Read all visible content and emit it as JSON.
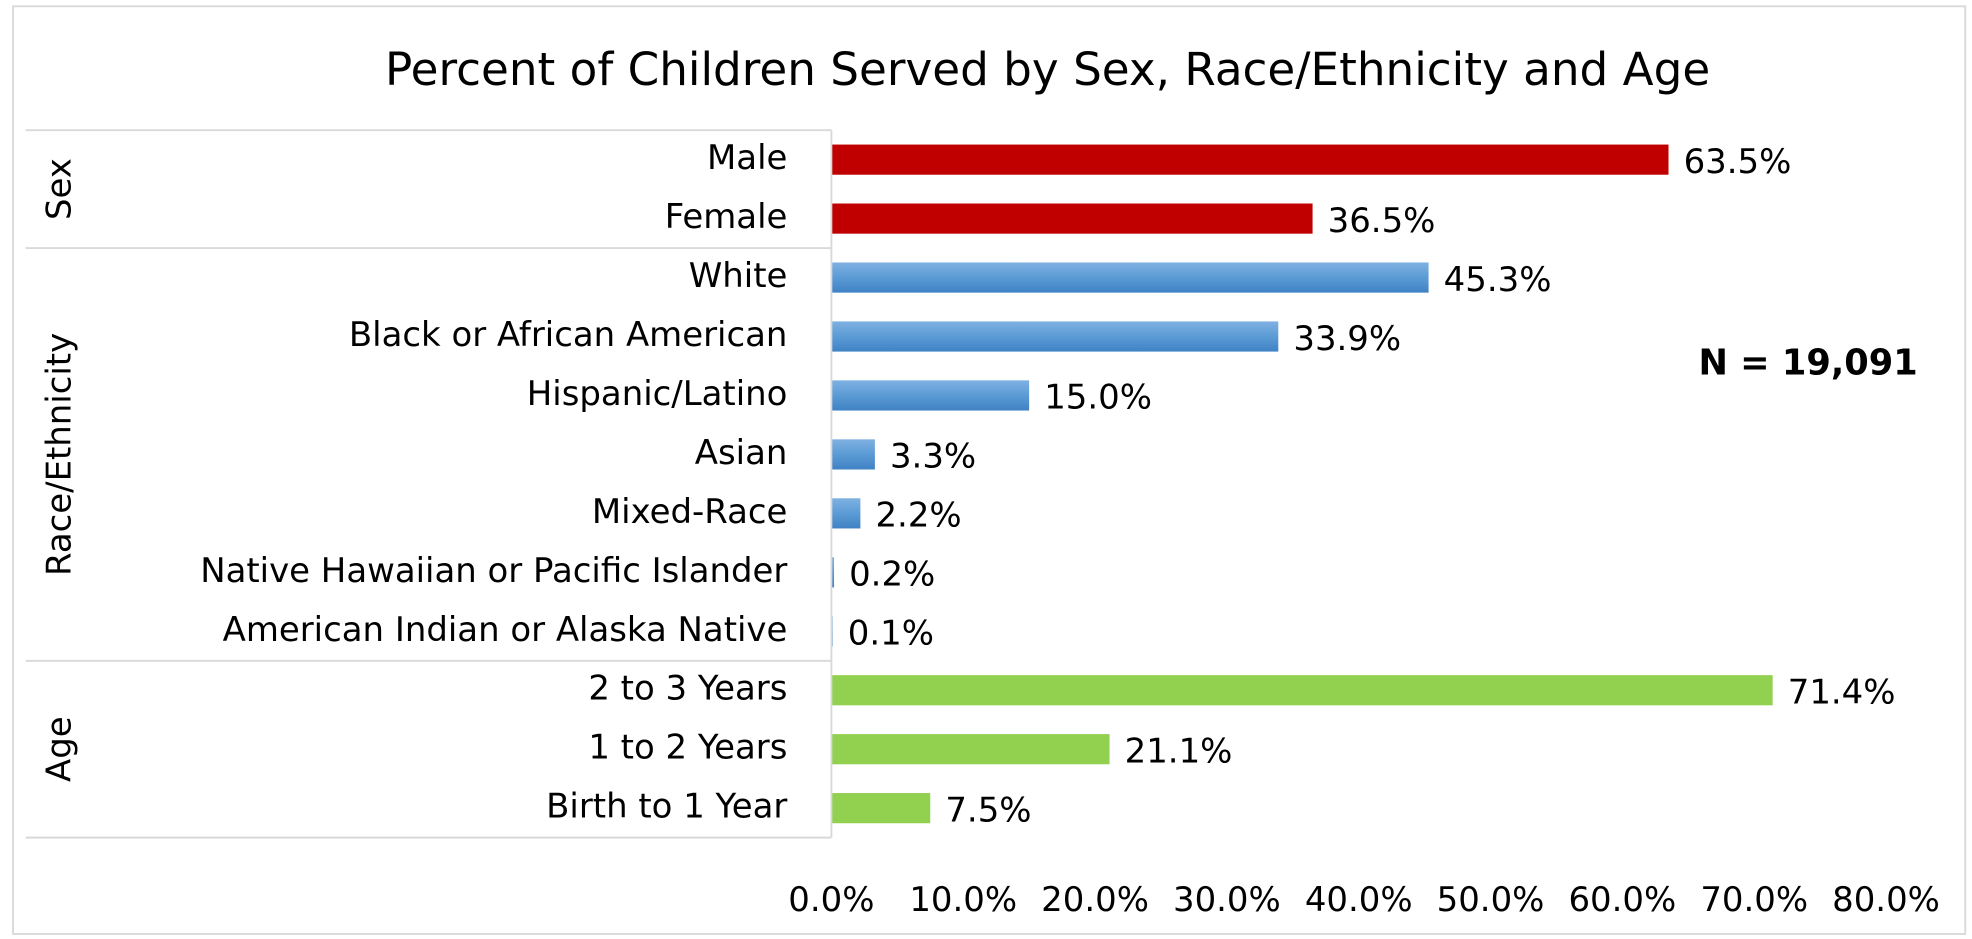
{
  "chart_data": {
    "type": "bar",
    "title": "Percent of Children Served by Sex, Race/Ethnicity and Age",
    "annotation": "N = 19,091",
    "groups": [
      {
        "name": "Sex",
        "color": "#c00000",
        "categories": [
          "Male",
          "Female"
        ],
        "values": [
          63.5,
          36.5
        ],
        "value_labels": [
          "63.5%",
          "36.5%"
        ]
      },
      {
        "name": "Race/Ethnicity",
        "color": "#5b9bd5",
        "categories": [
          "White",
          "Black or African American",
          "Hispanic/Latino",
          "Asian",
          "Mixed-Race",
          "Native Hawaiian or Pacific Islander",
          "American Indian or Alaska Native"
        ],
        "values": [
          45.3,
          33.9,
          15.0,
          3.3,
          2.2,
          0.2,
          0.1
        ],
        "value_labels": [
          "45.3%",
          "33.9%",
          "15.0%",
          "3.3%",
          "2.2%",
          "0.2%",
          "0.1%"
        ]
      },
      {
        "name": "Age",
        "color": "#92d050",
        "categories": [
          "2 to 3 Years",
          "1 to 2 Years",
          "Birth to 1 Year"
        ],
        "values": [
          71.4,
          21.1,
          7.5
        ],
        "value_labels": [
          "71.4%",
          "21.1%",
          "7.5%"
        ]
      }
    ],
    "xlim": [
      0,
      80
    ],
    "xticks": [
      {
        "value": 0,
        "label": "0.0%"
      },
      {
        "value": 10,
        "label": "10.0%"
      },
      {
        "value": 20,
        "label": "20.0%"
      },
      {
        "value": 30,
        "label": "30.0%"
      },
      {
        "value": 40,
        "label": "40.0%"
      },
      {
        "value": 50,
        "label": "50.0%"
      },
      {
        "value": 60,
        "label": "60.0%"
      },
      {
        "value": 70,
        "label": "70.0%"
      },
      {
        "value": 80,
        "label": "80.0%"
      }
    ]
  }
}
